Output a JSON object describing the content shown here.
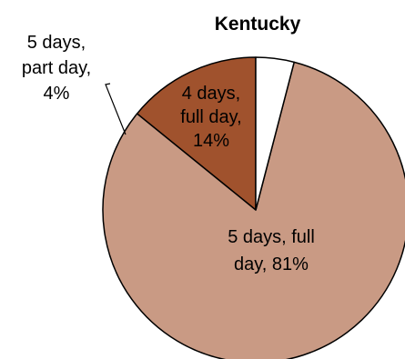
{
  "chart_data": {
    "type": "pie",
    "title": "Kentucky",
    "slices": [
      {
        "label_lines": [
          "4 days,",
          "full day,",
          "14%"
        ],
        "value": 14,
        "color": "#a0522d"
      },
      {
        "label_lines": [
          "5 days, full",
          "day, 81%"
        ],
        "value": 81,
        "color": "#c99a84"
      },
      {
        "label_lines": [
          "5 days,",
          "part day,",
          "4%"
        ],
        "value": 4,
        "color": "#ffffff"
      }
    ],
    "start": "12 o'clock",
    "direction": "counterclockwise",
    "edge_color": "#000000",
    "legend": "none"
  }
}
